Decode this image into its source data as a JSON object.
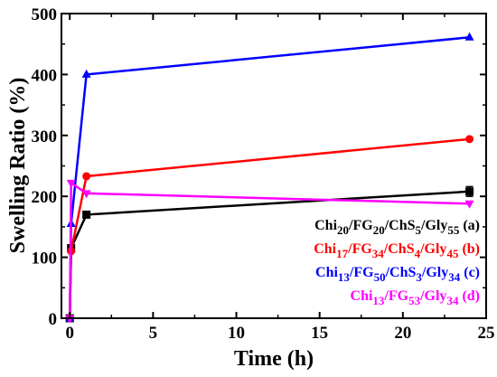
{
  "chart_data": {
    "type": "line",
    "xlabel": "Time (h)",
    "ylabel": "Swelling Ratio (%)",
    "xlim": [
      -0.5,
      25
    ],
    "ylim": [
      0,
      500
    ],
    "xticks": [
      0,
      5,
      10,
      15,
      20,
      25
    ],
    "yticks": [
      0,
      100,
      200,
      300,
      400,
      500
    ],
    "grid": false,
    "legend_position": "bottom-right",
    "series": [
      {
        "name": "Chi20/FG20/ChS5/Gly55 (a)",
        "label_parts": [
          [
            "Chi",
            "n"
          ],
          [
            "20",
            "s"
          ],
          [
            "/FG",
            "n"
          ],
          [
            "20",
            "s"
          ],
          [
            "/ChS",
            "n"
          ],
          [
            "5",
            "s"
          ],
          [
            "/Gly",
            "n"
          ],
          [
            "55",
            "s"
          ],
          [
            " (a)",
            "n"
          ]
        ],
        "color": "#000000",
        "marker": "square",
        "x": [
          0,
          0.08,
          1,
          24
        ],
        "y": [
          0,
          115,
          170,
          208
        ],
        "yerr": [
          0,
          0,
          0,
          8
        ]
      },
      {
        "name": "Chi17/FG34/ChS4/Gly45 (b)",
        "label_parts": [
          [
            "Chi",
            "n"
          ],
          [
            "17",
            "s"
          ],
          [
            "/FG",
            "n"
          ],
          [
            "34",
            "s"
          ],
          [
            "/ChS",
            "n"
          ],
          [
            "4",
            "s"
          ],
          [
            "/Gly",
            "n"
          ],
          [
            "45",
            "s"
          ],
          [
            " (b)",
            "n"
          ]
        ],
        "color": "#ff0000",
        "marker": "circle",
        "x": [
          0,
          0.08,
          1,
          24
        ],
        "y": [
          0,
          110,
          233,
          294
        ],
        "yerr": [
          0,
          0,
          0,
          0
        ]
      },
      {
        "name": "Chi13/FG50/ChS3/Gly34 (c)",
        "label_parts": [
          [
            "Chi",
            "n"
          ],
          [
            "13",
            "s"
          ],
          [
            "/FG",
            "n"
          ],
          [
            "50",
            "s"
          ],
          [
            "/ChS",
            "n"
          ],
          [
            "3",
            "s"
          ],
          [
            "/Gly",
            "n"
          ],
          [
            "34",
            "s"
          ],
          [
            " (c)",
            "n"
          ]
        ],
        "color": "#0000ff",
        "marker": "triangle",
        "x": [
          0,
          0.08,
          1,
          24
        ],
        "y": [
          0,
          155,
          400,
          461
        ],
        "yerr": [
          0,
          0,
          0,
          0
        ]
      },
      {
        "name": "Chi13/FG53/Gly34 (d)",
        "label_parts": [
          [
            "Chi",
            "n"
          ],
          [
            "13",
            "s"
          ],
          [
            "/FG",
            "n"
          ],
          [
            "53",
            "s"
          ],
          [
            "/Gly",
            "n"
          ],
          [
            "34",
            "s"
          ],
          [
            " (d)",
            "n"
          ]
        ],
        "color": "#ff00ff",
        "marker": "invtriangle",
        "x": [
          0,
          0.08,
          1,
          24
        ],
        "y": [
          0,
          222,
          205,
          188
        ],
        "yerr": [
          0,
          0,
          0,
          0
        ]
      }
    ]
  }
}
